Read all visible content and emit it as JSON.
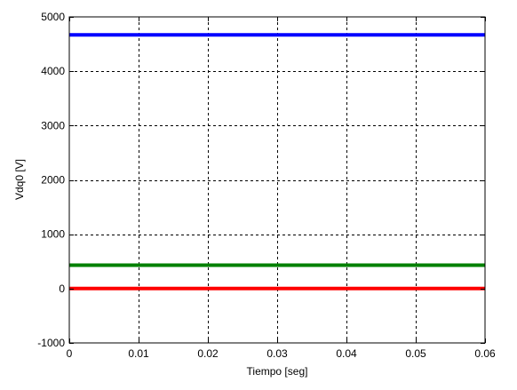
{
  "chart_data": {
    "type": "line",
    "title": "",
    "xlabel": "Tiempo [seg]",
    "ylabel": "Vdq0 [V]",
    "xlim": [
      0,
      0.06
    ],
    "ylim": [
      -1000,
      5000
    ],
    "x_ticks": [
      0,
      0.01,
      0.02,
      0.03,
      0.04,
      0.05,
      0.06
    ],
    "x_tick_labels": [
      "0",
      "0.01",
      "0.02",
      "0.03",
      "0.04",
      "0.05",
      "0.06"
    ],
    "y_ticks": [
      -1000,
      0,
      1000,
      2000,
      3000,
      4000,
      5000
    ],
    "y_tick_labels": [
      "-1000",
      "0",
      "1000",
      "2000",
      "3000",
      "4000",
      "5000"
    ],
    "grid": true,
    "legend": "none",
    "series": [
      {
        "color": "#0000ff",
        "x": [
          0,
          0.06
        ],
        "y": [
          4670,
          4670
        ]
      },
      {
        "color": "#008000",
        "x": [
          0,
          0.06
        ],
        "y": [
          430,
          430
        ]
      },
      {
        "color": "#ff0000",
        "x": [
          0,
          0.06
        ],
        "y": [
          0,
          0
        ]
      }
    ]
  }
}
